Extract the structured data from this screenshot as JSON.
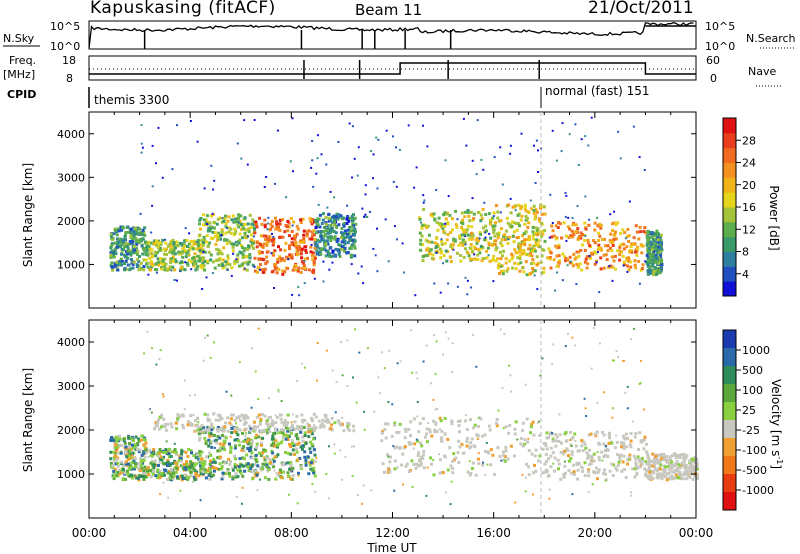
{
  "header": {
    "station": "Kapuskasing (fitACF)",
    "beam": "Beam 11",
    "date": "21/Oct/2011"
  },
  "top_panels": {
    "nsky_label": "N.Sky",
    "nsky_ticks": [
      "10^5",
      "10^0"
    ],
    "nsearch_label": "N.Search",
    "nsearch_ticks": [
      "10^5",
      "10^0"
    ],
    "freq_label_line1": "Freq.",
    "freq_label_line2": "[MHz]",
    "freq_ticks": [
      "18",
      "8"
    ],
    "nave_label": "Nave",
    "nave_ticks": [
      "60",
      "0"
    ],
    "cpid_label": "CPID",
    "cpid_segments": [
      "themis 3300",
      "normal (fast) 151"
    ]
  },
  "chart_data": [
    {
      "type": "heatmap",
      "panel": "power",
      "ylabel": "Slant Range [km]",
      "xlabel": "Time UT",
      "xlim": [
        0,
        24
      ],
      "ylim": [
        0,
        4500
      ],
      "x_ticks": [
        "00:00",
        "04:00",
        "08:00",
        "12:00",
        "16:00",
        "20:00",
        "00:00"
      ],
      "y_ticks": [
        "1000",
        "2000",
        "3000",
        "4000"
      ],
      "colorbar": {
        "label": "Power [dB]",
        "ticks": [
          "4",
          "8",
          "12",
          "16",
          "20",
          "24",
          "28"
        ],
        "colors": [
          "#1010d8",
          "#2050c0",
          "#2f7fa0",
          "#3a9a6a",
          "#5cae4c",
          "#a4c33a",
          "#e6d41a",
          "#f0b418",
          "#f39020",
          "#f06a20",
          "#e83c1c",
          "#e01010"
        ]
      },
      "regions": [
        {
          "t0": 0.8,
          "t1": 2.2,
          "r0": 900,
          "r1": 1900,
          "level": 0.3
        },
        {
          "t0": 2.2,
          "t1": 4.5,
          "r0": 900,
          "r1": 1600,
          "level": 0.45
        },
        {
          "t0": 4.3,
          "t1": 6.5,
          "r0": 900,
          "r1": 2200,
          "level": 0.45
        },
        {
          "t0": 6.5,
          "t1": 8.9,
          "r0": 800,
          "r1": 2100,
          "level": 0.78
        },
        {
          "t0": 8.9,
          "t1": 10.5,
          "r0": 1200,
          "r1": 2200,
          "level": 0.25
        },
        {
          "t0": 13.0,
          "t1": 16.0,
          "r0": 1100,
          "r1": 2300,
          "level": 0.5
        },
        {
          "t0": 16.0,
          "t1": 18.0,
          "r0": 800,
          "r1": 2400,
          "level": 0.55
        },
        {
          "t0": 18.0,
          "t1": 22.0,
          "r0": 900,
          "r1": 2000,
          "level": 0.68
        },
        {
          "t0": 22.0,
          "t1": 22.6,
          "r0": 800,
          "r1": 1800,
          "level": 0.3
        }
      ]
    },
    {
      "type": "heatmap",
      "panel": "velocity",
      "ylabel": "Slant Range [km]",
      "xlabel": "Time UT",
      "xlim": [
        0,
        24
      ],
      "ylim": [
        0,
        4500
      ],
      "x_ticks": [
        "00:00",
        "04:00",
        "08:00",
        "12:00",
        "16:00",
        "20:00",
        "00:00"
      ],
      "y_ticks": [
        "1000",
        "2000",
        "3000",
        "4000"
      ],
      "colorbar": {
        "label": "Velocity [m s",
        "label_sup": "-1",
        "label_end": "]",
        "ticks": [
          "1000",
          "500",
          "100",
          "25",
          "-25",
          "-100",
          "-500",
          "-1000"
        ],
        "colors": [
          "#1a3ab0",
          "#2a6aa8",
          "#2f8c5a",
          "#5aa83c",
          "#88d040",
          "#c8c8c0",
          "#f0a030",
          "#f07818",
          "#e83c10",
          "#e01010"
        ]
      },
      "regions": [
        {
          "t0": 0.8,
          "t1": 2.2,
          "r0": 900,
          "r1": 1900,
          "kind": "green"
        },
        {
          "t0": 2.2,
          "t1": 4.5,
          "r0": 900,
          "r1": 1600,
          "kind": "green"
        },
        {
          "t0": 4.3,
          "t1": 6.5,
          "r0": 900,
          "r1": 2100,
          "kind": "green"
        },
        {
          "t0": 6.5,
          "t1": 8.9,
          "r0": 900,
          "r1": 2100,
          "kind": "green"
        },
        {
          "t0": 2.5,
          "t1": 10.5,
          "r0": 2000,
          "r1": 2400,
          "kind": "grey"
        },
        {
          "t0": 11.5,
          "t1": 18.0,
          "r0": 1000,
          "r1": 2300,
          "kind": "grey"
        },
        {
          "t0": 18.0,
          "t1": 22.0,
          "r0": 900,
          "r1": 2000,
          "kind": "grey"
        },
        {
          "t0": 22.0,
          "t1": 24.0,
          "r0": 900,
          "r1": 1500,
          "kind": "grey"
        }
      ]
    }
  ]
}
